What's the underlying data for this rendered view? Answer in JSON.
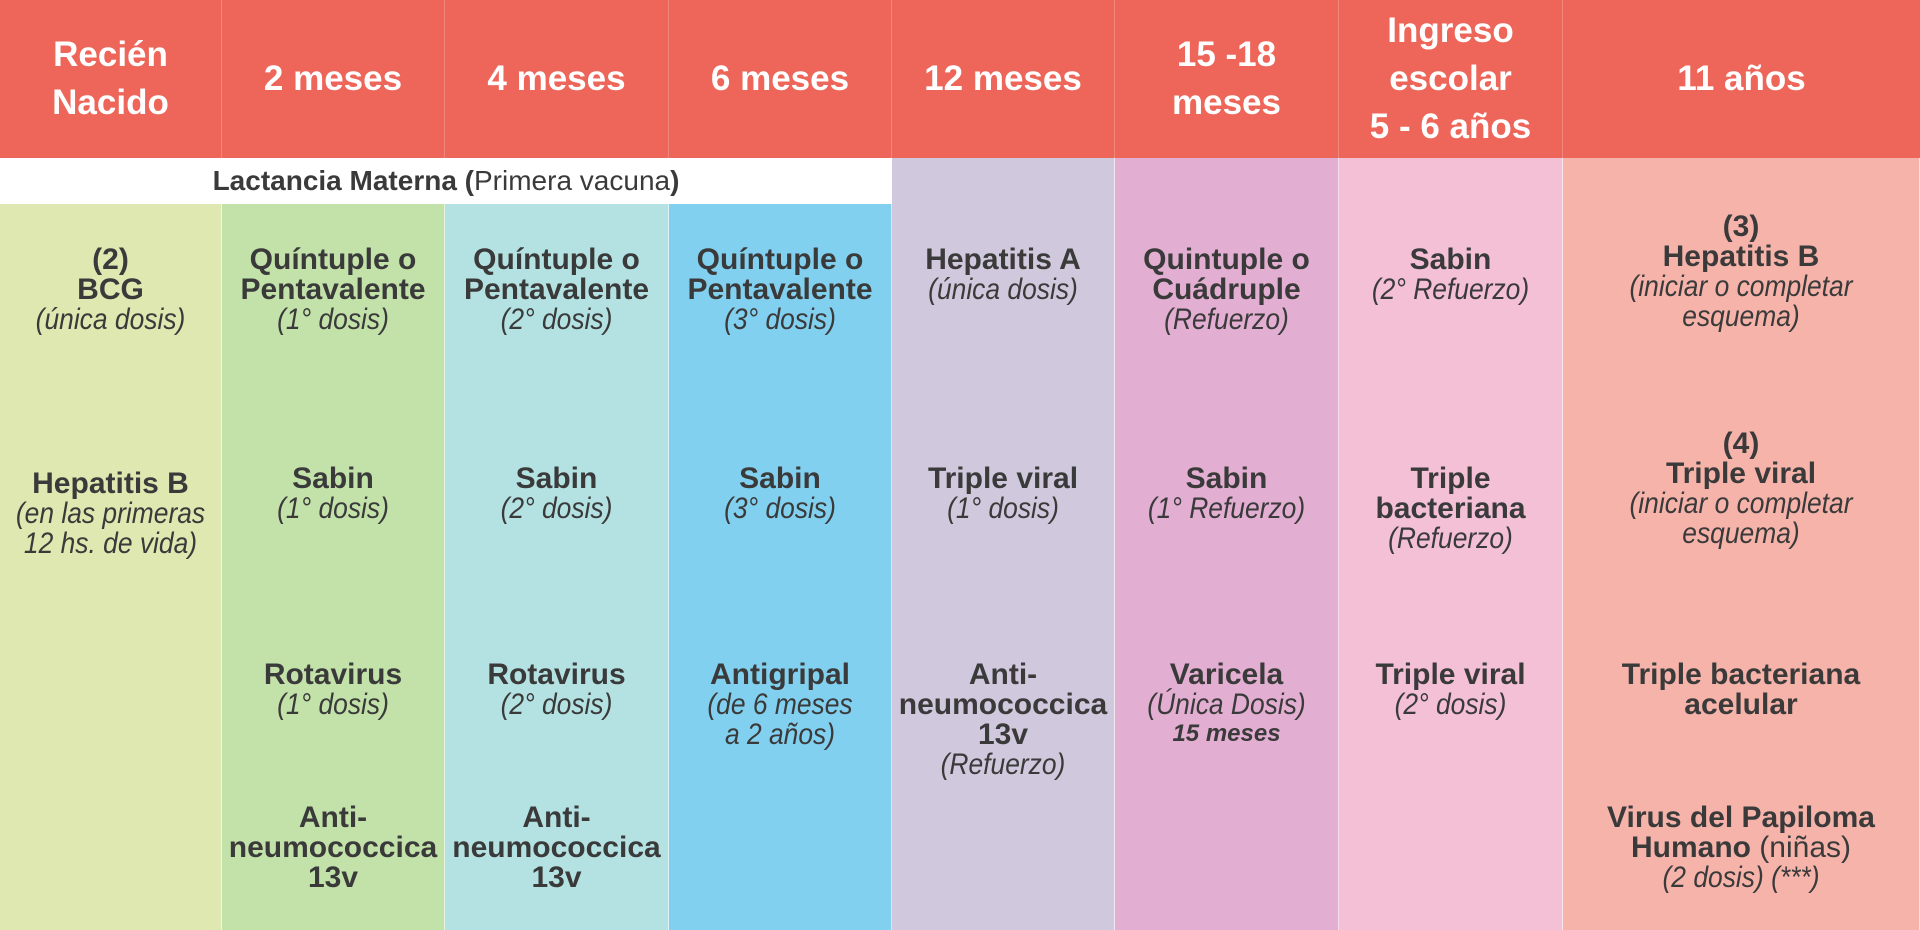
{
  "colors": {
    "header": "#ee6559",
    "lactancia_band": "#ffffff",
    "columns": [
      "#dfe8b0",
      "#c3e2aa",
      "#b4e2e3",
      "#82d0ef",
      "#d0c8dc",
      "#e2aed1",
      "#f4c0d6",
      "#f6b3aa"
    ]
  },
  "header": {
    "columns": [
      {
        "lines": [
          "Recién",
          "Nacido"
        ]
      },
      {
        "lines": [
          "2 meses"
        ]
      },
      {
        "lines": [
          "4 meses"
        ]
      },
      {
        "lines": [
          "6 meses"
        ]
      },
      {
        "lines": [
          "12 meses"
        ]
      },
      {
        "lines": [
          "15 -18",
          "meses"
        ]
      },
      {
        "lines": [
          "Ingreso",
          "escolar",
          "5 - 6 años"
        ]
      },
      {
        "lines": [
          "11 años"
        ]
      }
    ]
  },
  "lactancia": {
    "bold": "Lactancia Materna (",
    "normal": "Primera vacuna",
    "close": ")"
  },
  "columns": [
    {
      "entries": [
        {
          "lines": [
            "(2)",
            "BCG"
          ],
          "note": [
            "(única dosis)"
          ]
        },
        {
          "lines": [
            "Hepatitis B"
          ],
          "note": [
            "(en las primeras",
            "12 hs. de vida)"
          ]
        }
      ]
    },
    {
      "entries": [
        {
          "lines": [
            "Quíntuple o",
            "Pentavalente"
          ],
          "note": [
            "(1° dosis)"
          ]
        },
        {
          "lines": [
            "Sabin"
          ],
          "note": [
            "(1° dosis)"
          ]
        },
        {
          "lines": [
            "Rotavirus"
          ],
          "note": [
            "(1° dosis)"
          ]
        },
        {
          "lines": [
            "Anti-",
            "neumococcica",
            "13v"
          ],
          "note": []
        }
      ]
    },
    {
      "entries": [
        {
          "lines": [
            "Quíntuple o",
            "Pentavalente"
          ],
          "note": [
            "(2° dosis)"
          ]
        },
        {
          "lines": [
            "Sabin"
          ],
          "note": [
            "(2° dosis)"
          ]
        },
        {
          "lines": [
            "Rotavirus"
          ],
          "note": [
            "(2° dosis)"
          ]
        },
        {
          "lines": [
            "Anti-",
            "neumococcica",
            "13v"
          ],
          "note": []
        }
      ]
    },
    {
      "entries": [
        {
          "lines": [
            "Quíntuple o",
            "Pentavalente"
          ],
          "note": [
            "(3° dosis)"
          ]
        },
        {
          "lines": [
            "Sabin"
          ],
          "note": [
            "(3° dosis)"
          ]
        },
        {
          "lines": [
            "Antigripal"
          ],
          "note": [
            "(de 6 meses",
            "a 2 años)"
          ]
        }
      ]
    },
    {
      "entries": [
        {
          "lines": [
            "Hepatitis A"
          ],
          "note": [
            "(única dosis)"
          ]
        },
        {
          "lines": [
            "Triple viral"
          ],
          "note": [
            "(1° dosis)"
          ]
        },
        {
          "lines": [
            "Anti-",
            "neumococcica",
            "13v"
          ],
          "note": [
            "(Refuerzo)"
          ]
        }
      ]
    },
    {
      "entries": [
        {
          "lines": [
            "Quintuple o",
            "Cuádruple"
          ],
          "note": [
            "(Refuerzo)"
          ]
        },
        {
          "lines": [
            "Sabin"
          ],
          "note": [
            "(1° Refuerzo)"
          ]
        },
        {
          "lines": [
            "Varicela"
          ],
          "note": [
            "(Única Dosis)"
          ],
          "emph": "15 meses"
        }
      ]
    },
    {
      "entries": [
        {
          "lines": [
            "Sabin"
          ],
          "note": [
            "(2° Refuerzo)"
          ]
        },
        {
          "lines": [
            "Triple",
            "bacteriana"
          ],
          "note": [
            "(Refuerzo)"
          ]
        },
        {
          "lines": [
            "Triple viral"
          ],
          "note": [
            "(2° dosis)"
          ]
        }
      ]
    },
    {
      "entries": [
        {
          "lines": [
            "(3)",
            "Hepatitis B"
          ],
          "note": [
            "(iniciar o completar",
            "esquema)"
          ]
        },
        {
          "lines": [
            "(4)",
            "Triple viral"
          ],
          "note": [
            "(iniciar o completar",
            "esquema)"
          ]
        },
        {
          "lines": [
            "Triple  bacteriana",
            "acelular"
          ],
          "note": []
        },
        {
          "lines": [
            "Virus del Papiloma",
            "Humano"
          ],
          "suffix": " (niñas)",
          "note": [
            "(2 dosis) (***)"
          ]
        }
      ]
    }
  ]
}
